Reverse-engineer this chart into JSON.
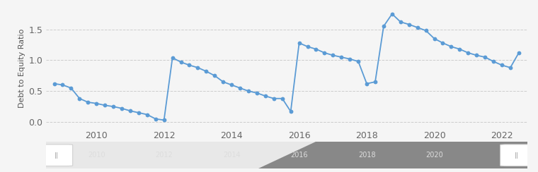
{
  "ylabel": "Debt to Equity Ratio",
  "ylim": [
    -0.1,
    1.85
  ],
  "yticks": [
    0.0,
    0.5,
    1.0,
    1.5
  ],
  "ytick_labels": [
    "0.0",
    "0.5",
    "1.0",
    "1.5"
  ],
  "background_color": "#f5f5f5",
  "plot_bg": "#f5f5f5",
  "line_color": "#5b9bd5",
  "marker_color": "#5b9bd5",
  "grid_color": "#cccccc",
  "points": [
    [
      2008.75,
      0.62
    ],
    [
      2009.0,
      0.6
    ],
    [
      2009.25,
      0.55
    ],
    [
      2009.5,
      0.38
    ],
    [
      2009.75,
      0.32
    ],
    [
      2010.0,
      0.3
    ],
    [
      2010.25,
      0.27
    ],
    [
      2010.5,
      0.25
    ],
    [
      2010.75,
      0.22
    ],
    [
      2011.0,
      0.18
    ],
    [
      2011.25,
      0.15
    ],
    [
      2011.5,
      0.12
    ],
    [
      2011.75,
      0.05
    ],
    [
      2012.0,
      0.03
    ],
    [
      2012.25,
      1.04
    ],
    [
      2012.5,
      0.97
    ],
    [
      2012.75,
      0.92
    ],
    [
      2013.0,
      0.88
    ],
    [
      2013.25,
      0.82
    ],
    [
      2013.5,
      0.75
    ],
    [
      2013.75,
      0.65
    ],
    [
      2014.0,
      0.6
    ],
    [
      2014.25,
      0.55
    ],
    [
      2014.5,
      0.5
    ],
    [
      2014.75,
      0.47
    ],
    [
      2015.0,
      0.42
    ],
    [
      2015.25,
      0.38
    ],
    [
      2015.5,
      0.38
    ],
    [
      2015.75,
      0.17
    ],
    [
      2016.0,
      1.28
    ],
    [
      2016.25,
      1.22
    ],
    [
      2016.5,
      1.18
    ],
    [
      2016.75,
      1.12
    ],
    [
      2017.0,
      1.08
    ],
    [
      2017.25,
      1.05
    ],
    [
      2017.5,
      1.02
    ],
    [
      2017.75,
      0.98
    ],
    [
      2018.0,
      0.62
    ],
    [
      2018.25,
      0.65
    ],
    [
      2018.5,
      1.55
    ],
    [
      2018.75,
      1.75
    ],
    [
      2019.0,
      1.62
    ],
    [
      2019.25,
      1.58
    ],
    [
      2019.5,
      1.53
    ],
    [
      2019.75,
      1.48
    ],
    [
      2020.0,
      1.35
    ],
    [
      2020.25,
      1.28
    ],
    [
      2020.5,
      1.22
    ],
    [
      2020.75,
      1.18
    ],
    [
      2021.0,
      1.12
    ],
    [
      2021.25,
      1.08
    ],
    [
      2021.5,
      1.05
    ],
    [
      2021.75,
      0.98
    ],
    [
      2022.0,
      0.92
    ],
    [
      2022.25,
      0.88
    ],
    [
      2022.5,
      1.12
    ]
  ],
  "xticks": [
    2010,
    2012,
    2014,
    2016,
    2018,
    2020,
    2022
  ],
  "xlim": [
    2008.5,
    2022.75
  ],
  "tick_fontsize": 9,
  "ylabel_fontsize": 8,
  "scroll_years": [
    2010,
    2012,
    2014,
    2016,
    2018,
    2020
  ],
  "scroll_bg": "#e8e8e8",
  "scroll_dark": "#888888",
  "scroll_dark_start": 2014.8,
  "scroll_x_min": 2008.5,
  "scroll_x_max": 2022.75
}
